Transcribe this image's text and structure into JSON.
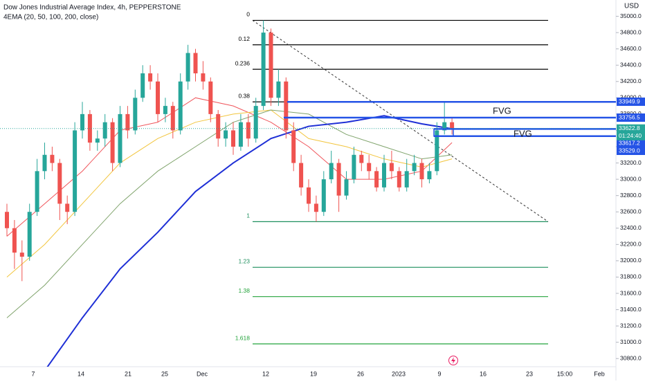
{
  "chart_data": {
    "type": "candlestick",
    "title": "Dow Jones Industrial Average Index, 4h, PEPPERSTONE",
    "subtitle": "4EMA (20, 50, 100, 200, close)",
    "currency": "USD",
    "ylim": [
      30700,
      35200
    ],
    "yticks": [
      {
        "value": 35000,
        "label": "35000.0"
      },
      {
        "value": 34800,
        "label": "34800.0"
      },
      {
        "value": 34600,
        "label": "34600.0"
      },
      {
        "value": 34400,
        "label": "34400.0"
      },
      {
        "value": 34200,
        "label": "34200.0"
      },
      {
        "value": 34000,
        "label": "34000.0"
      },
      {
        "value": 33800,
        "label": "33800.0"
      },
      {
        "value": 33600,
        "label": "33600.0"
      },
      {
        "value": 33400,
        "label": "33400.0"
      },
      {
        "value": 33200,
        "label": "33200.0"
      },
      {
        "value": 33000,
        "label": "33000.0"
      },
      {
        "value": 32800,
        "label": "32800.0"
      },
      {
        "value": 32600,
        "label": "32600.0"
      },
      {
        "value": 32400,
        "label": "32400.0"
      },
      {
        "value": 32200,
        "label": "32200.0"
      },
      {
        "value": 32000,
        "label": "32000.0"
      },
      {
        "value": 31800,
        "label": "31800.0"
      },
      {
        "value": 31600,
        "label": "31600.0"
      },
      {
        "value": 31400,
        "label": "31400.0"
      },
      {
        "value": 31200,
        "label": "31200.0"
      },
      {
        "value": 31000,
        "label": "31000.0"
      },
      {
        "value": 30800,
        "label": "30800.0"
      }
    ],
    "x_labels": [
      "7",
      "14",
      "21",
      "25",
      "Dec",
      "12",
      "19",
      "26",
      "2023",
      "9",
      "16",
      "23",
      "15:00",
      "Feb"
    ],
    "up_color": "#26a69a",
    "down_color": "#ef5350",
    "open": [
      32600,
      32400,
      32100,
      32050,
      32600,
      33100,
      33300,
      33200,
      32700,
      32600,
      33600,
      33800,
      33450,
      33500,
      33700,
      33200,
      33800,
      33600,
      34000,
      34300,
      34200,
      33800,
      33900,
      33600,
      34200,
      34550,
      34300,
      34200,
      33800,
      33500,
      33600,
      33400,
      33700,
      33500,
      33900,
      34800,
      34000,
      34200,
      33600,
      33200,
      32900,
      32700,
      32600,
      33000,
      33200,
      32800,
      33000,
      33300,
      33200,
      33100,
      32900,
      33200,
      33100,
      32900,
      33100,
      33200,
      33000,
      33100,
      33600,
      33700
    ],
    "high": [
      32700,
      32500,
      32250,
      32700,
      33250,
      33450,
      33400,
      33250,
      32800,
      33700,
      33950,
      33850,
      33600,
      33800,
      33750,
      33900,
      33900,
      34100,
      34400,
      34400,
      34300,
      34000,
      33950,
      34300,
      34650,
      34600,
      34450,
      34250,
      33850,
      33700,
      33700,
      33800,
      33800,
      34000,
      34950,
      34850,
      34350,
      34250,
      33700,
      33300,
      33000,
      32800,
      33100,
      33350,
      33250,
      33100,
      33400,
      33350,
      33300,
      33150,
      33300,
      33350,
      33150,
      33250,
      33300,
      33250,
      33200,
      33700,
      33950,
      33750
    ],
    "low": [
      32300,
      31900,
      31750,
      32000,
      32550,
      33000,
      33100,
      32500,
      32450,
      32550,
      33500,
      33350,
      33350,
      33400,
      33100,
      33150,
      33500,
      33550,
      33950,
      34100,
      33700,
      33700,
      33500,
      33550,
      34100,
      34200,
      34100,
      33700,
      33400,
      33400,
      33300,
      33350,
      33400,
      33450,
      33850,
      33900,
      33900,
      33500,
      33100,
      32800,
      32600,
      32480,
      32550,
      32950,
      32600,
      32750,
      32950,
      33100,
      33000,
      32850,
      32850,
      33000,
      32850,
      32850,
      33050,
      32900,
      32950,
      33050,
      33550,
      33550
    ],
    "close": [
      32400,
      32100,
      32050,
      32600,
      33100,
      33300,
      33200,
      32700,
      32600,
      33600,
      33800,
      33450,
      33500,
      33700,
      33200,
      33800,
      33600,
      34000,
      34300,
      34200,
      33800,
      33900,
      33600,
      34200,
      34550,
      34300,
      34200,
      33800,
      33500,
      33600,
      33400,
      33700,
      33500,
      33900,
      34800,
      34000,
      34200,
      33600,
      33200,
      32900,
      32700,
      32600,
      33000,
      33200,
      32800,
      33000,
      33300,
      33200,
      33100,
      32900,
      33200,
      33100,
      32900,
      33100,
      33200,
      33000,
      33100,
      33600,
      33700,
      33620
    ],
    "series": [
      {
        "name": "EMA 20",
        "color": "#f0545a",
        "values": [
          32300,
          32700,
          33100,
          33600,
          33700,
          34000,
          33900,
          33700,
          33400,
          33000,
          33000,
          33100,
          33450
        ]
      },
      {
        "name": "EMA 50",
        "color": "#f2c53d",
        "values": [
          31800,
          32200,
          32700,
          33200,
          33500,
          33700,
          33800,
          33850,
          33500,
          33400,
          33250,
          33150,
          33250
        ]
      },
      {
        "name": "EMA 100",
        "color": "#7fa36b",
        "values": [
          31300,
          31700,
          32200,
          32700,
          33100,
          33400,
          33700,
          33850,
          33800,
          33550,
          33400,
          33250,
          33300
        ]
      },
      {
        "name": "EMA 200",
        "color": "#1e2fd6",
        "values": [
          null,
          30650,
          31300,
          31900,
          32350,
          32850,
          33200,
          33500,
          33650,
          33700,
          33780,
          33680,
          33620
        ]
      }
    ],
    "fib": {
      "labels": [
        "0",
        "0.12",
        "0.236",
        "0.38",
        "1",
        "1.23",
        "1.38",
        "1.618"
      ],
      "values": [
        34950,
        34650,
        34350,
        33950,
        32480,
        31920,
        31560,
        30980
      ],
      "colors": [
        "#000000",
        "#000000",
        "#000000",
        "#000000",
        "#1e8f5e",
        "#1e8f5e",
        "#22a33a",
        "#22a33a"
      ]
    },
    "trendline": [
      34950,
      32480
    ],
    "levels": {
      "values": [
        33949.9,
        33756.5,
        33617.2,
        33529
      ],
      "value_labels": [
        "33949.9",
        "33756.5",
        "33617.2",
        "33529.0"
      ],
      "color": "#2453e6"
    },
    "last_price": {
      "value": 33622.8,
      "countdown": "01:24:40",
      "color": "#26a69a"
    },
    "annotations": [
      "FVG",
      "FVG"
    ]
  }
}
